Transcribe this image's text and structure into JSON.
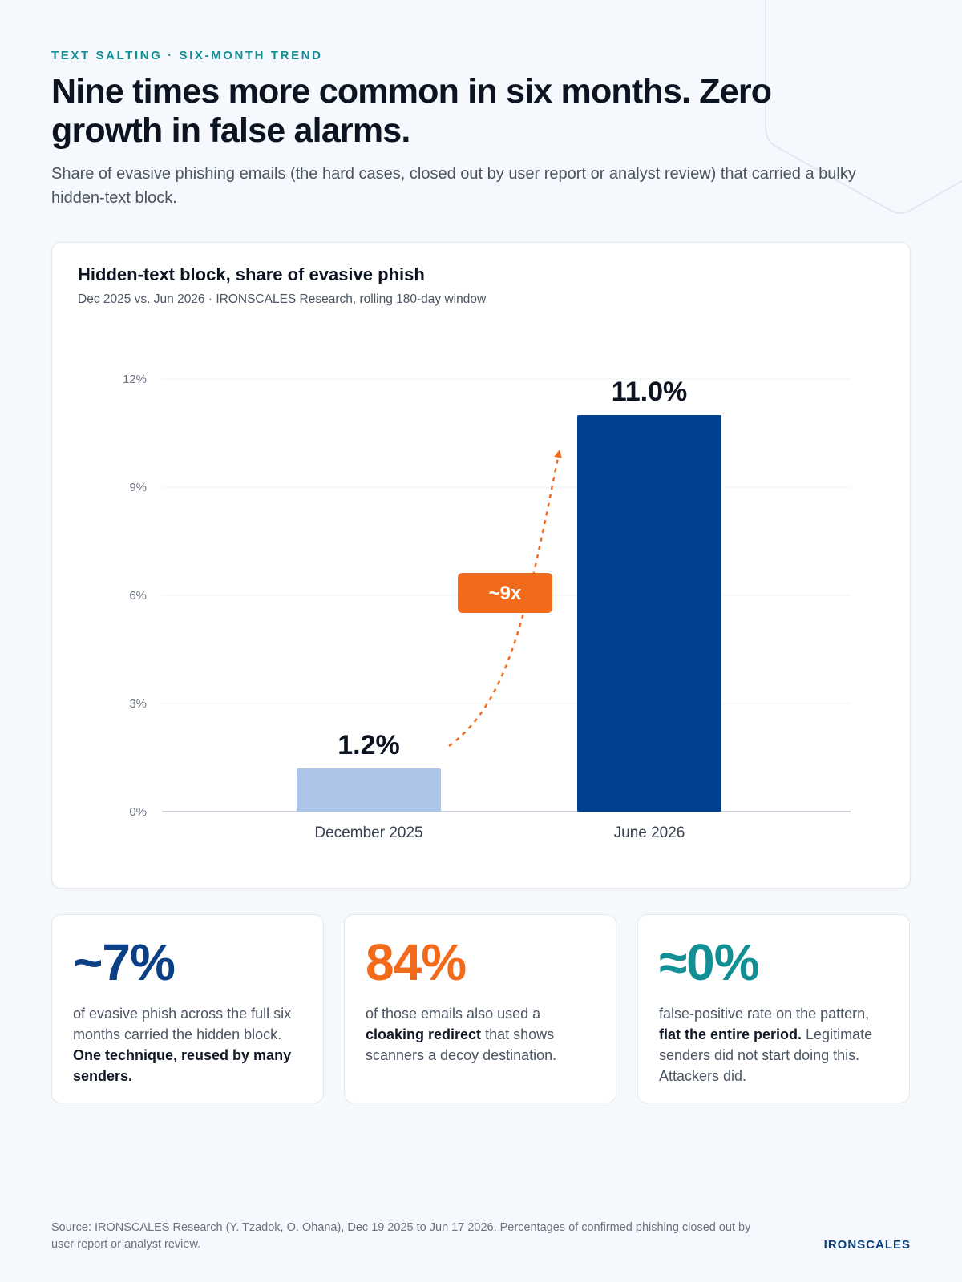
{
  "header": {
    "eyebrow": "TEXT SALTING · SIX-MONTH TREND",
    "headline": "Nine times more common in six months. Zero growth in false alarms.",
    "subhead": "Share of evasive phishing emails (the hard cases, closed out by user report or analyst review) that carried a bulky hidden-text block."
  },
  "chart_data": {
    "type": "bar",
    "title": "Hidden-text block, share of evasive phish",
    "subtitle": "Dec 2025 vs. Jun 2026 · IRONSCALES Research, rolling 180-day window",
    "categories": [
      "December 2025",
      "June 2026"
    ],
    "values": [
      1.2,
      11.0
    ],
    "value_labels": [
      "1.2%",
      "11.0%"
    ],
    "bar_colors": [
      "#abc4e8",
      "#00418f"
    ],
    "yticks": [
      0,
      3,
      6,
      9,
      12
    ],
    "ytick_labels": [
      "0%",
      "3%",
      "6%",
      "9%",
      "12%"
    ],
    "ylim": [
      0,
      12
    ],
    "grid": true,
    "annotation": {
      "label": "~9x",
      "color": "#f26b1d"
    }
  },
  "stats": [
    {
      "value": "~7%",
      "color": "#0b3f86",
      "text": "of evasive phish across the full six months carried the hidden block. ",
      "bold": "One technique, reused by many senders.",
      "tail": ""
    },
    {
      "value": "84%",
      "color": "#f26b1d",
      "text": "of those emails also used a ",
      "bold": "cloaking redirect",
      "tail": " that shows scanners a decoy destination."
    },
    {
      "value": "≈0%",
      "color": "#128f94",
      "text": "false-positive rate on the pattern, ",
      "bold": "flat the entire period.",
      "tail": " Legitimate senders did not start doing this. Attackers did."
    }
  ],
  "footer": {
    "source": "Source: IRONSCALES Research (Y. Tzadok, O. Ohana), Dec 19 2025 to Jun 17 2026. Percentages of confirmed phishing closed out by user report or analyst review.",
    "brand": "IRONSCALES"
  }
}
